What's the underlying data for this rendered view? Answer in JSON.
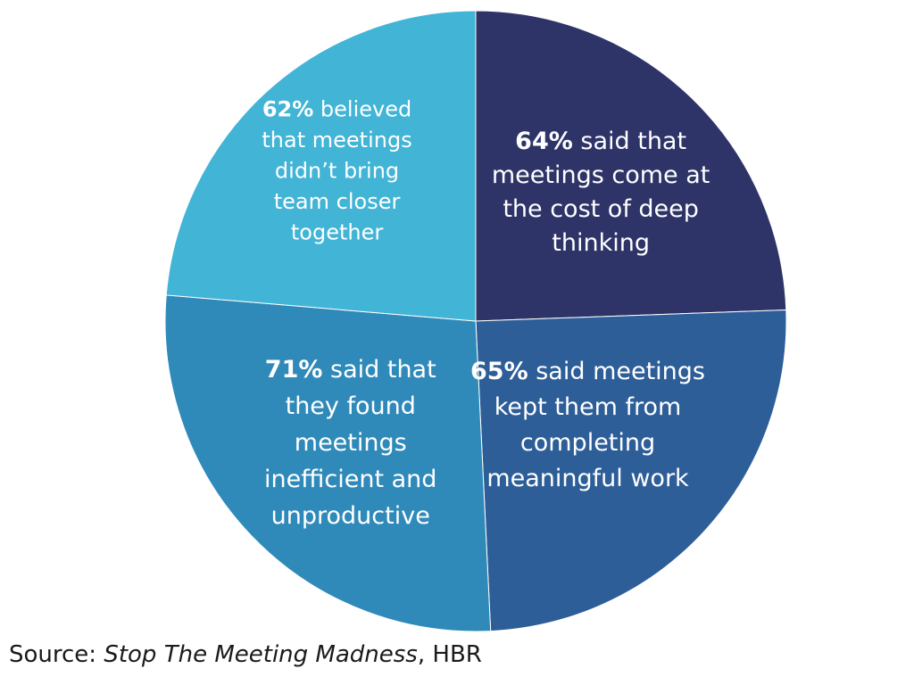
{
  "chart_data": {
    "type": "pie",
    "slices": [
      {
        "value": 64,
        "pct_label": "64%",
        "text": "said that meetings come at the cost of deep thinking",
        "lines": [
          "said that",
          "meetings come at",
          "the cost of deep",
          "thinking"
        ],
        "color": "#2e3468"
      },
      {
        "value": 65,
        "pct_label": "65%",
        "text": "said meetings kept them from completing meaningful work",
        "lines": [
          "said meetings",
          "kept them from",
          "completing",
          "meaningful work"
        ],
        "color": "#2d5e98"
      },
      {
        "value": 71,
        "pct_label": "71%",
        "text": "said that they found meetings inefficient and unproductive",
        "lines": [
          "said that",
          "they found",
          "meetings",
          "inefficient and",
          "unproductive"
        ],
        "color": "#2f8aba"
      },
      {
        "value": 62,
        "pct_label": "62%",
        "text": "believed that meetings didn’t bring team closer together",
        "lines": [
          "believed",
          "that meetings",
          "didn’t bring",
          "team closer",
          "together"
        ],
        "color": "#42b4d6"
      }
    ]
  },
  "source": {
    "prefix": "Source: ",
    "title": "Stop The Meeting Madness",
    "suffix": ", HBR"
  }
}
